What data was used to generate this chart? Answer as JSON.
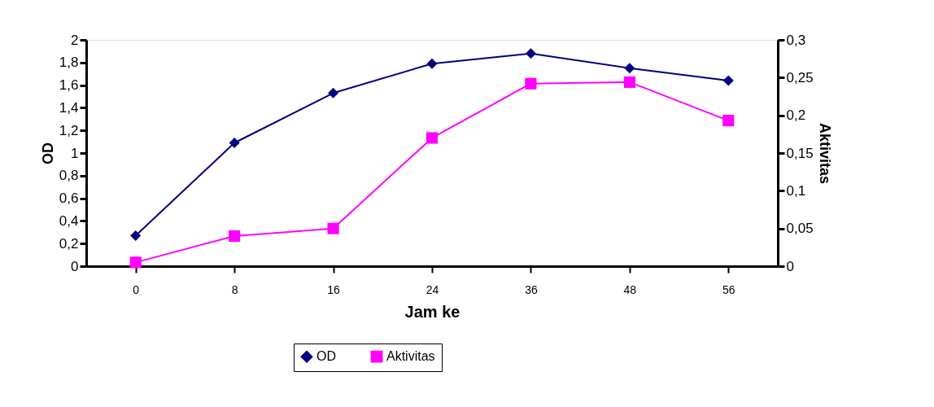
{
  "chart_data": {
    "type": "line",
    "xlabel": "Jam ke",
    "ylabel": "OD",
    "y2label": "Aktivitas",
    "categories": [
      "0",
      "8",
      "16",
      "24",
      "36",
      "48",
      "56"
    ],
    "series": [
      {
        "name": "OD",
        "color": "#000080",
        "marker": "diamond",
        "values": [
          0.27,
          1.09,
          1.53,
          1.79,
          1.88,
          1.75,
          1.64
        ]
      },
      {
        "name": "Aktivitas",
        "color": "#ff00ff",
        "marker": "square",
        "axis": "y2",
        "values": [
          0.005,
          0.04,
          0.05,
          0.17,
          0.242,
          0.244,
          0.193
        ]
      }
    ],
    "ylim": [
      0,
      2
    ],
    "yticks": [
      0,
      {
        "value": 0.2,
        "label": "0,2"
      },
      {
        "value": 0.4,
        "label": "0,4"
      },
      {
        "value": 0.6,
        "label": "0,6"
      },
      {
        "value": 0.8,
        "label": "0,8"
      },
      1,
      {
        "value": 1.2,
        "label": "1,2"
      },
      {
        "value": 1.4,
        "label": "1,4"
      },
      {
        "value": 1.6,
        "label": "1,6"
      },
      {
        "value": 1.8,
        "label": "1,8"
      },
      2
    ],
    "y2lim": [
      0,
      0.3
    ],
    "y2ticks": [
      0,
      {
        "value": 0.05,
        "label": "0,05"
      },
      {
        "value": 0.1,
        "label": "0,1"
      },
      {
        "value": 0.15,
        "label": "0,15"
      },
      {
        "value": 0.2,
        "label": "0,2"
      },
      {
        "value": 0.25,
        "label": "0,25"
      },
      {
        "value": 0.3,
        "label": "0,3"
      }
    ],
    "grid": false,
    "legend": "bottom",
    "line_style": "solid"
  }
}
